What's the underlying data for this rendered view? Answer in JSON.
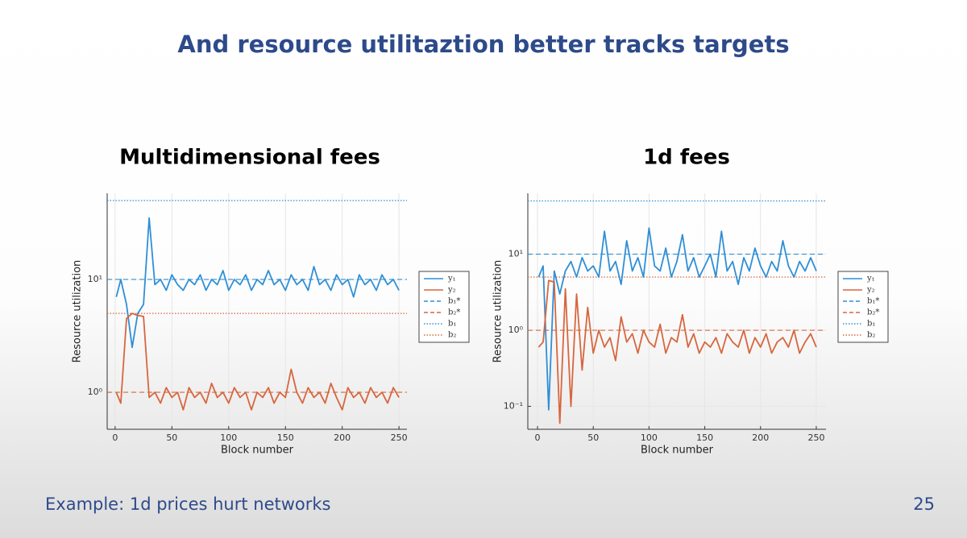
{
  "slide": {
    "title": "And resource utilitaztion better tracks targets",
    "footer": "Example: 1d prices hurt networks",
    "page_number": "25"
  },
  "chart_data": [
    {
      "type": "line",
      "title": "Multidimensional fees",
      "xlabel": "Block number",
      "ylabel": "Resource utilization",
      "log_scale": "y",
      "grid": true,
      "legend": "right",
      "xlim": [
        -7,
        257
      ],
      "xticks": [
        0,
        50,
        100,
        150,
        200,
        250
      ],
      "ylim": [
        0.47,
        58
      ],
      "yticks": [
        {
          "value": 1,
          "label": "10⁰"
        },
        {
          "value": 10,
          "label": "10¹"
        }
      ],
      "x": [
        1,
        5,
        10,
        15,
        20,
        25,
        30,
        35,
        40,
        45,
        50,
        55,
        60,
        65,
        70,
        75,
        80,
        85,
        90,
        95,
        100,
        105,
        110,
        115,
        120,
        125,
        130,
        135,
        140,
        145,
        150,
        155,
        160,
        165,
        170,
        175,
        180,
        185,
        190,
        195,
        200,
        205,
        210,
        215,
        220,
        225,
        230,
        235,
        240,
        245,
        250
      ],
      "series": [
        {
          "name": "y₁",
          "color": "#2f8fd6",
          "values": [
            7,
            10,
            6,
            2.5,
            5,
            6,
            35,
            9,
            10,
            8,
            11,
            9,
            8,
            10,
            9,
            11,
            8,
            10,
            9,
            12,
            8,
            10,
            9,
            11,
            8,
            10,
            9,
            12,
            9,
            10,
            8,
            11,
            9,
            10,
            8,
            13,
            9,
            10,
            8,
            11,
            9,
            10,
            7,
            11,
            9,
            10,
            8,
            11,
            9,
            10,
            8
          ]
        },
        {
          "name": "y₂",
          "color": "#d7663e",
          "values": [
            1,
            0.8,
            4.5,
            5,
            4.8,
            4.7,
            0.9,
            1,
            0.8,
            1.1,
            0.9,
            1,
            0.7,
            1.1,
            0.9,
            1,
            0.8,
            1.2,
            0.9,
            1,
            0.8,
            1.1,
            0.9,
            1,
            0.7,
            1,
            0.9,
            1.1,
            0.8,
            1,
            0.9,
            1.6,
            1,
            0.8,
            1.1,
            0.9,
            1,
            0.8,
            1.2,
            0.9,
            0.7,
            1.1,
            0.9,
            1,
            0.8,
            1.1,
            0.9,
            1,
            0.8,
            1.1,
            0.9
          ]
        }
      ],
      "reference_lines": [
        {
          "name": "b₁*",
          "value": 10,
          "color": "#2f8fd6",
          "style": "dashed"
        },
        {
          "name": "b₂*",
          "value": 1,
          "color": "#d7663e",
          "style": "dashed"
        },
        {
          "name": "b₁",
          "value": 50,
          "color": "#2f8fd6",
          "style": "dotted"
        },
        {
          "name": "b₂",
          "value": 5,
          "color": "#d7663e",
          "style": "dotted"
        }
      ]
    },
    {
      "type": "line",
      "title": "1d fees",
      "xlabel": "Block number",
      "ylabel": "Resource utilization",
      "log_scale": "y",
      "grid": true,
      "legend": "right",
      "xlim": [
        -8.7,
        258.7
      ],
      "xticks": [
        0,
        50,
        100,
        150,
        200,
        250
      ],
      "ylim": [
        0.05,
        63
      ],
      "yticks": [
        {
          "value": 0.1,
          "label": "10⁻¹"
        },
        {
          "value": 1,
          "label": "10⁰"
        },
        {
          "value": 10,
          "label": "10¹"
        }
      ],
      "x": [
        1,
        5,
        10,
        15,
        20,
        25,
        30,
        35,
        40,
        45,
        50,
        55,
        60,
        65,
        70,
        75,
        80,
        85,
        90,
        95,
        100,
        105,
        110,
        115,
        120,
        125,
        130,
        135,
        140,
        145,
        150,
        155,
        160,
        165,
        170,
        175,
        180,
        185,
        190,
        195,
        200,
        205,
        210,
        215,
        220,
        225,
        230,
        235,
        240,
        245,
        250
      ],
      "series": [
        {
          "name": "y₁",
          "color": "#2f8fd6",
          "values": [
            5,
            7,
            0.09,
            6,
            3,
            6,
            8,
            5,
            9,
            6,
            7,
            5,
            20,
            6,
            8,
            4,
            15,
            6,
            9,
            5,
            22,
            7,
            6,
            12,
            5,
            8,
            18,
            6,
            9,
            5,
            7,
            10,
            5,
            20,
            6,
            8,
            4,
            9,
            6,
            12,
            7,
            5,
            8,
            6,
            15,
            7,
            5,
            8,
            6,
            9,
            6
          ]
        },
        {
          "name": "y₂",
          "color": "#d7663e",
          "values": [
            0.6,
            0.7,
            4.5,
            4.3,
            0.06,
            3.5,
            0.1,
            3,
            0.3,
            2,
            0.5,
            1,
            0.6,
            0.8,
            0.4,
            1.5,
            0.7,
            0.9,
            0.5,
            1,
            0.7,
            0.6,
            1.2,
            0.5,
            0.8,
            0.7,
            1.6,
            0.6,
            0.9,
            0.5,
            0.7,
            0.6,
            0.8,
            0.5,
            0.9,
            0.7,
            0.6,
            1,
            0.5,
            0.8,
            0.6,
            0.9,
            0.5,
            0.7,
            0.8,
            0.6,
            1,
            0.5,
            0.7,
            0.9,
            0.6
          ]
        }
      ],
      "reference_lines": [
        {
          "name": "b₁*",
          "value": 10,
          "color": "#2f8fd6",
          "style": "dashed"
        },
        {
          "name": "b₂*",
          "value": 1,
          "color": "#d7663e",
          "style": "dashed"
        },
        {
          "name": "b₁",
          "value": 50,
          "color": "#2f8fd6",
          "style": "dotted"
        },
        {
          "name": "b₂",
          "value": 5,
          "color": "#d7663e",
          "style": "dotted"
        }
      ]
    }
  ]
}
